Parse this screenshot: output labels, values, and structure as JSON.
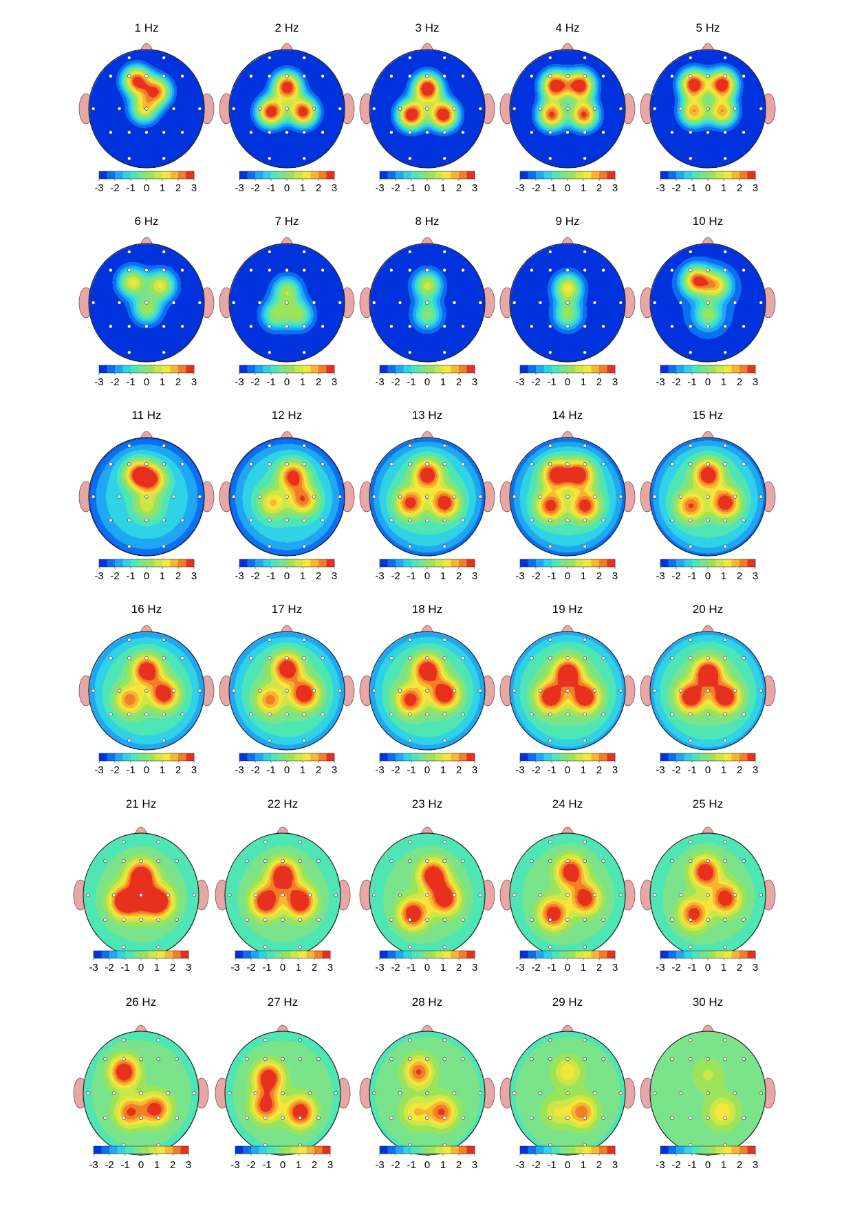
{
  "chart_data": {
    "type": "heatmap",
    "description_kind": "scalp topographic maps",
    "colorbar": {
      "min": -3,
      "max": 3,
      "tick_labels": [
        "-3",
        "-2",
        "-1",
        "0",
        "1",
        "2",
        "3"
      ],
      "levels": 12,
      "colors": [
        "#0033dd",
        "#0a6ff0",
        "#1fa7f4",
        "#30d2e6",
        "#4de6b4",
        "#7be38a",
        "#9be45a",
        "#cde648",
        "#f4e63a",
        "#f6b630",
        "#f27e28",
        "#e8301e"
      ]
    },
    "electrode_count": 19,
    "maps": [
      {
        "title": "1 Hz",
        "frequency": 1,
        "centers": [
          {
            "fx": -0.18,
            "fy": -0.48,
            "v": 2.7
          },
          {
            "fx": 0.18,
            "fy": -0.3,
            "v": 2.0
          },
          {
            "fx": -0.05,
            "fy": 0.0,
            "v": 1.0
          }
        ],
        "background": -3.2,
        "rim": -3.2
      },
      {
        "title": "2 Hz",
        "frequency": 2,
        "centers": [
          {
            "fx": 0.0,
            "fy": -0.38,
            "v": 3.2
          },
          {
            "fx": -0.28,
            "fy": 0.05,
            "v": 3.2
          },
          {
            "fx": 0.28,
            "fy": 0.05,
            "v": 3.0
          }
        ],
        "background": -3.2,
        "rim": -3.2
      },
      {
        "title": "3 Hz",
        "frequency": 3,
        "centers": [
          {
            "fx": 0.0,
            "fy": -0.35,
            "v": 3.6
          },
          {
            "fx": -0.28,
            "fy": 0.1,
            "v": 3.5
          },
          {
            "fx": 0.28,
            "fy": 0.1,
            "v": 3.5
          }
        ],
        "background": -3.2,
        "rim": -3.2
      },
      {
        "title": "4 Hz",
        "frequency": 4,
        "centers": [
          {
            "fx": -0.22,
            "fy": -0.4,
            "v": 3.2
          },
          {
            "fx": 0.22,
            "fy": -0.4,
            "v": 3.2
          },
          {
            "fx": -0.28,
            "fy": 0.1,
            "v": 2.6
          },
          {
            "fx": 0.28,
            "fy": 0.1,
            "v": 2.6
          }
        ],
        "background": -3.2,
        "rim": -3.2
      },
      {
        "title": "5 Hz",
        "frequency": 5,
        "centers": [
          {
            "fx": -0.25,
            "fy": -0.42,
            "v": 3.3
          },
          {
            "fx": 0.25,
            "fy": -0.42,
            "v": 3.3
          },
          {
            "fx": -0.25,
            "fy": 0.05,
            "v": 1.8
          },
          {
            "fx": 0.25,
            "fy": 0.05,
            "v": 1.8
          }
        ],
        "background": -3.2,
        "rim": -3.2
      },
      {
        "title": "6 Hz",
        "frequency": 6,
        "centers": [
          {
            "fx": -0.25,
            "fy": -0.35,
            "v": 1.1
          },
          {
            "fx": 0.25,
            "fy": -0.3,
            "v": 1.0
          },
          {
            "fx": 0.0,
            "fy": 0.1,
            "v": 0.3
          }
        ],
        "background": -3.0,
        "rim": -3.1
      },
      {
        "title": "7 Hz",
        "frequency": 7,
        "centers": [
          {
            "fx": 0.0,
            "fy": -0.2,
            "v": 0.3
          },
          {
            "fx": -0.2,
            "fy": 0.2,
            "v": 0.1
          },
          {
            "fx": 0.2,
            "fy": 0.2,
            "v": 0.1
          }
        ],
        "background": -3.0,
        "rim": -3.1
      },
      {
        "title": "8 Hz",
        "frequency": 8,
        "centers": [
          {
            "fx": 0.0,
            "fy": -0.3,
            "v": 0.7
          },
          {
            "fx": 0.0,
            "fy": 0.2,
            "v": 0.0
          }
        ],
        "background": -3.0,
        "rim": -3.1
      },
      {
        "title": "9 Hz",
        "frequency": 9,
        "centers": [
          {
            "fx": 0.0,
            "fy": -0.25,
            "v": 1.2
          },
          {
            "fx": 0.0,
            "fy": 0.2,
            "v": 0.1
          }
        ],
        "background": -3.0,
        "rim": -3.1
      },
      {
        "title": "10 Hz",
        "frequency": 10,
        "centers": [
          {
            "fx": -0.2,
            "fy": -0.38,
            "v": 2.6
          },
          {
            "fx": 0.15,
            "fy": -0.3,
            "v": 1.3
          },
          {
            "fx": 0.0,
            "fy": 0.2,
            "v": 0.2
          }
        ],
        "background": -2.6,
        "rim": -3.1
      },
      {
        "title": "11 Hz",
        "frequency": 11,
        "centers": [
          {
            "fx": -0.15,
            "fy": -0.38,
            "v": 2.9
          },
          {
            "fx": 0.1,
            "fy": -0.3,
            "v": 2.3
          },
          {
            "fx": 0.0,
            "fy": 0.15,
            "v": 0.8
          }
        ],
        "background": -1.2,
        "rim": -2.6
      },
      {
        "title": "12 Hz",
        "frequency": 12,
        "centers": [
          {
            "fx": 0.1,
            "fy": -0.35,
            "v": 3.1
          },
          {
            "fx": 0.28,
            "fy": 0.05,
            "v": 2.4
          },
          {
            "fx": -0.25,
            "fy": 0.1,
            "v": 1.6
          }
        ],
        "background": -1.0,
        "rim": -2.6
      },
      {
        "title": "13 Hz",
        "frequency": 13,
        "centers": [
          {
            "fx": 0.0,
            "fy": -0.38,
            "v": 3.5
          },
          {
            "fx": -0.3,
            "fy": 0.1,
            "v": 3.0
          },
          {
            "fx": 0.3,
            "fy": 0.1,
            "v": 3.3
          }
        ],
        "background": -0.8,
        "rim": -2.4
      },
      {
        "title": "14 Hz",
        "frequency": 14,
        "centers": [
          {
            "fx": -0.2,
            "fy": -0.38,
            "v": 3.4
          },
          {
            "fx": 0.2,
            "fy": -0.38,
            "v": 3.4
          },
          {
            "fx": -0.3,
            "fy": 0.15,
            "v": 3.0
          },
          {
            "fx": 0.3,
            "fy": 0.15,
            "v": 3.1
          }
        ],
        "background": -0.8,
        "rim": -2.4
      },
      {
        "title": "15 Hz",
        "frequency": 15,
        "centers": [
          {
            "fx": 0.0,
            "fy": -0.38,
            "v": 3.6
          },
          {
            "fx": 0.3,
            "fy": 0.1,
            "v": 3.4
          },
          {
            "fx": -0.3,
            "fy": 0.15,
            "v": 2.6
          }
        ],
        "background": -0.7,
        "rim": -2.3
      },
      {
        "title": "16 Hz",
        "frequency": 16,
        "centers": [
          {
            "fx": 0.0,
            "fy": -0.35,
            "v": 3.7
          },
          {
            "fx": 0.3,
            "fy": 0.05,
            "v": 3.5
          },
          {
            "fx": -0.3,
            "fy": 0.15,
            "v": 2.4
          }
        ],
        "background": -0.6,
        "rim": -2.0
      },
      {
        "title": "17 Hz",
        "frequency": 17,
        "centers": [
          {
            "fx": 0.0,
            "fy": -0.38,
            "v": 3.7
          },
          {
            "fx": 0.3,
            "fy": 0.05,
            "v": 3.6
          },
          {
            "fx": -0.3,
            "fy": 0.15,
            "v": 2.3
          }
        ],
        "background": -0.5,
        "rim": -2.0
      },
      {
        "title": "18 Hz",
        "frequency": 18,
        "centers": [
          {
            "fx": 0.0,
            "fy": -0.35,
            "v": 3.8
          },
          {
            "fx": 0.3,
            "fy": 0.05,
            "v": 3.7
          },
          {
            "fx": -0.3,
            "fy": 0.15,
            "v": 3.1
          }
        ],
        "background": -0.5,
        "rim": -2.0
      },
      {
        "title": "19 Hz",
        "frequency": 19,
        "centers": [
          {
            "fx": 0.0,
            "fy": -0.3,
            "v": 4.0
          },
          {
            "fx": -0.3,
            "fy": 0.1,
            "v": 3.8
          },
          {
            "fx": 0.3,
            "fy": 0.1,
            "v": 3.8
          }
        ],
        "background": -0.4,
        "rim": -1.8
      },
      {
        "title": "20 Hz",
        "frequency": 20,
        "centers": [
          {
            "fx": 0.0,
            "fy": -0.3,
            "v": 4.0
          },
          {
            "fx": -0.3,
            "fy": 0.1,
            "v": 3.8
          },
          {
            "fx": 0.3,
            "fy": 0.1,
            "v": 3.8
          }
        ],
        "background": -0.4,
        "rim": -1.8
      },
      {
        "title": "21 Hz",
        "frequency": 21,
        "centers": [
          {
            "fx": 0.0,
            "fy": -0.3,
            "v": 4.2
          },
          {
            "fx": -0.3,
            "fy": 0.1,
            "v": 4.0
          },
          {
            "fx": 0.3,
            "fy": 0.1,
            "v": 4.0
          },
          {
            "fx": 0.0,
            "fy": 0.15,
            "v": 1.6
          }
        ],
        "background": -0.3,
        "rim": -1.0
      },
      {
        "title": "22 Hz",
        "frequency": 22,
        "centers": [
          {
            "fx": 0.0,
            "fy": -0.32,
            "v": 4.0
          },
          {
            "fx": -0.3,
            "fy": 0.1,
            "v": 3.8
          },
          {
            "fx": 0.3,
            "fy": 0.1,
            "v": 3.9
          }
        ],
        "background": -0.3,
        "rim": -1.0
      },
      {
        "title": "23 Hz",
        "frequency": 23,
        "centers": [
          {
            "fx": 0.1,
            "fy": -0.32,
            "v": 3.8
          },
          {
            "fx": 0.3,
            "fy": 0.05,
            "v": 3.6
          },
          {
            "fx": -0.25,
            "fy": 0.3,
            "v": 3.5
          }
        ],
        "background": -0.3,
        "rim": -1.0
      },
      {
        "title": "24 Hz",
        "frequency": 24,
        "centers": [
          {
            "fx": 0.05,
            "fy": -0.38,
            "v": 3.5
          },
          {
            "fx": 0.3,
            "fy": 0.05,
            "v": 3.3
          },
          {
            "fx": -0.25,
            "fy": 0.3,
            "v": 3.3
          }
        ],
        "background": -0.3,
        "rim": -0.9
      },
      {
        "title": "25 Hz",
        "frequency": 25,
        "centers": [
          {
            "fx": -0.05,
            "fy": -0.38,
            "v": 3.5
          },
          {
            "fx": 0.3,
            "fy": 0.05,
            "v": 3.3
          },
          {
            "fx": -0.25,
            "fy": 0.3,
            "v": 3.0
          }
        ],
        "background": -0.3,
        "rim": -0.9
      },
      {
        "title": "26 Hz",
        "frequency": 26,
        "centers": [
          {
            "fx": -0.3,
            "fy": -0.35,
            "v": 3.6
          },
          {
            "fx": 0.25,
            "fy": 0.25,
            "v": 3.0
          },
          {
            "fx": -0.2,
            "fy": 0.3,
            "v": 2.6
          }
        ],
        "background": -0.3,
        "rim": -0.7
      },
      {
        "title": "27 Hz",
        "frequency": 27,
        "centers": [
          {
            "fx": -0.25,
            "fy": -0.25,
            "v": 3.5
          },
          {
            "fx": 0.3,
            "fy": 0.3,
            "v": 3.4
          },
          {
            "fx": -0.3,
            "fy": 0.2,
            "v": 3.0
          }
        ],
        "background": -0.3,
        "rim": -0.7
      },
      {
        "title": "28 Hz",
        "frequency": 28,
        "centers": [
          {
            "fx": -0.15,
            "fy": -0.35,
            "v": 2.6
          },
          {
            "fx": 0.25,
            "fy": 0.3,
            "v": 2.6
          },
          {
            "fx": -0.2,
            "fy": 0.3,
            "v": 1.5
          }
        ],
        "background": -0.3,
        "rim": -0.6
      },
      {
        "title": "29 Hz",
        "frequency": 29,
        "centers": [
          {
            "fx": 0.0,
            "fy": -0.35,
            "v": 1.4
          },
          {
            "fx": 0.25,
            "fy": 0.3,
            "v": 2.4
          },
          {
            "fx": -0.2,
            "fy": 0.3,
            "v": 1.0
          }
        ],
        "background": -0.3,
        "rim": -0.6
      },
      {
        "title": "30 Hz",
        "frequency": 30,
        "centers": [
          {
            "fx": 0.25,
            "fy": 0.3,
            "v": 1.5
          },
          {
            "fx": 0.0,
            "fy": -0.3,
            "v": 0.6
          }
        ],
        "background": -0.2,
        "rim": -0.5
      }
    ]
  }
}
